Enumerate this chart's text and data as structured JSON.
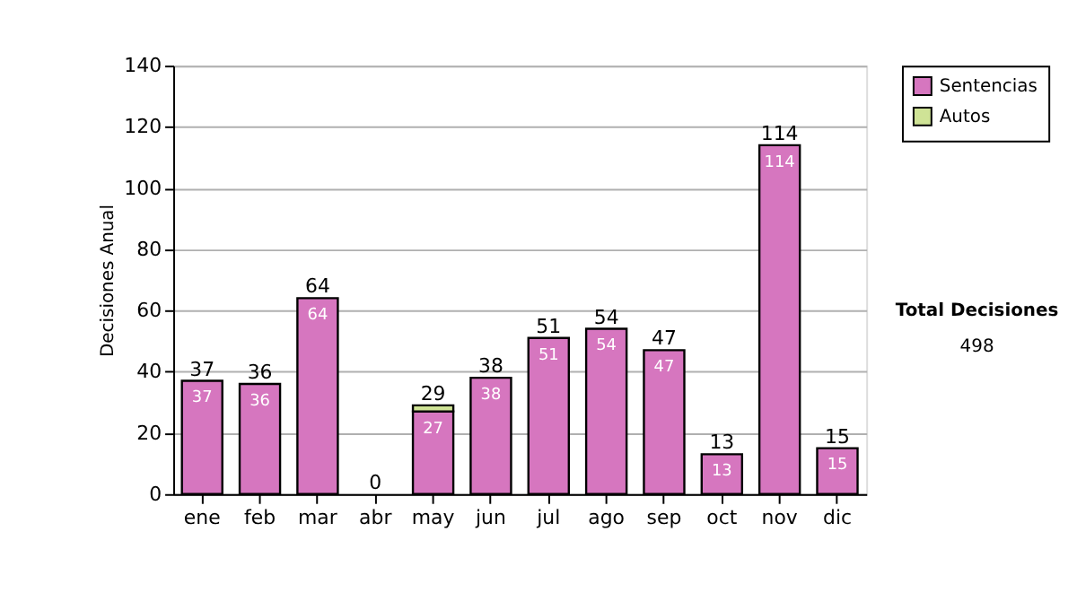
{
  "chart_data": {
    "type": "bar",
    "stacked": true,
    "ylabel": "Decisiones Anual",
    "categories": [
      "ene",
      "feb",
      "mar",
      "abr",
      "may",
      "jun",
      "jul",
      "ago",
      "sep",
      "oct",
      "nov",
      "dic"
    ],
    "series": [
      {
        "name": "Sentencias",
        "color": "#d676bf",
        "values": [
          37,
          36,
          64,
          0,
          27,
          38,
          51,
          54,
          47,
          13,
          114,
          15
        ],
        "value_labels": [
          "37",
          "36",
          "64",
          null,
          "27",
          "38",
          "51",
          "54",
          "47",
          "13",
          "114",
          "15"
        ]
      },
      {
        "name": "Autos",
        "color": "#cfe396",
        "values": [
          0,
          0,
          0,
          0,
          2,
          0,
          0,
          0,
          0,
          0,
          0,
          0
        ]
      }
    ],
    "totals": [
      "37",
      "36",
      "64",
      "0",
      "29",
      "38",
      "51",
      "54",
      "47",
      "13",
      "114",
      "15"
    ],
    "ylim": [
      0,
      140
    ],
    "yticks": [
      0,
      20,
      40,
      60,
      80,
      100,
      120,
      140
    ],
    "grid": "y",
    "legend": "right",
    "annotations": [
      "Total Decisiones",
      "498"
    ]
  }
}
